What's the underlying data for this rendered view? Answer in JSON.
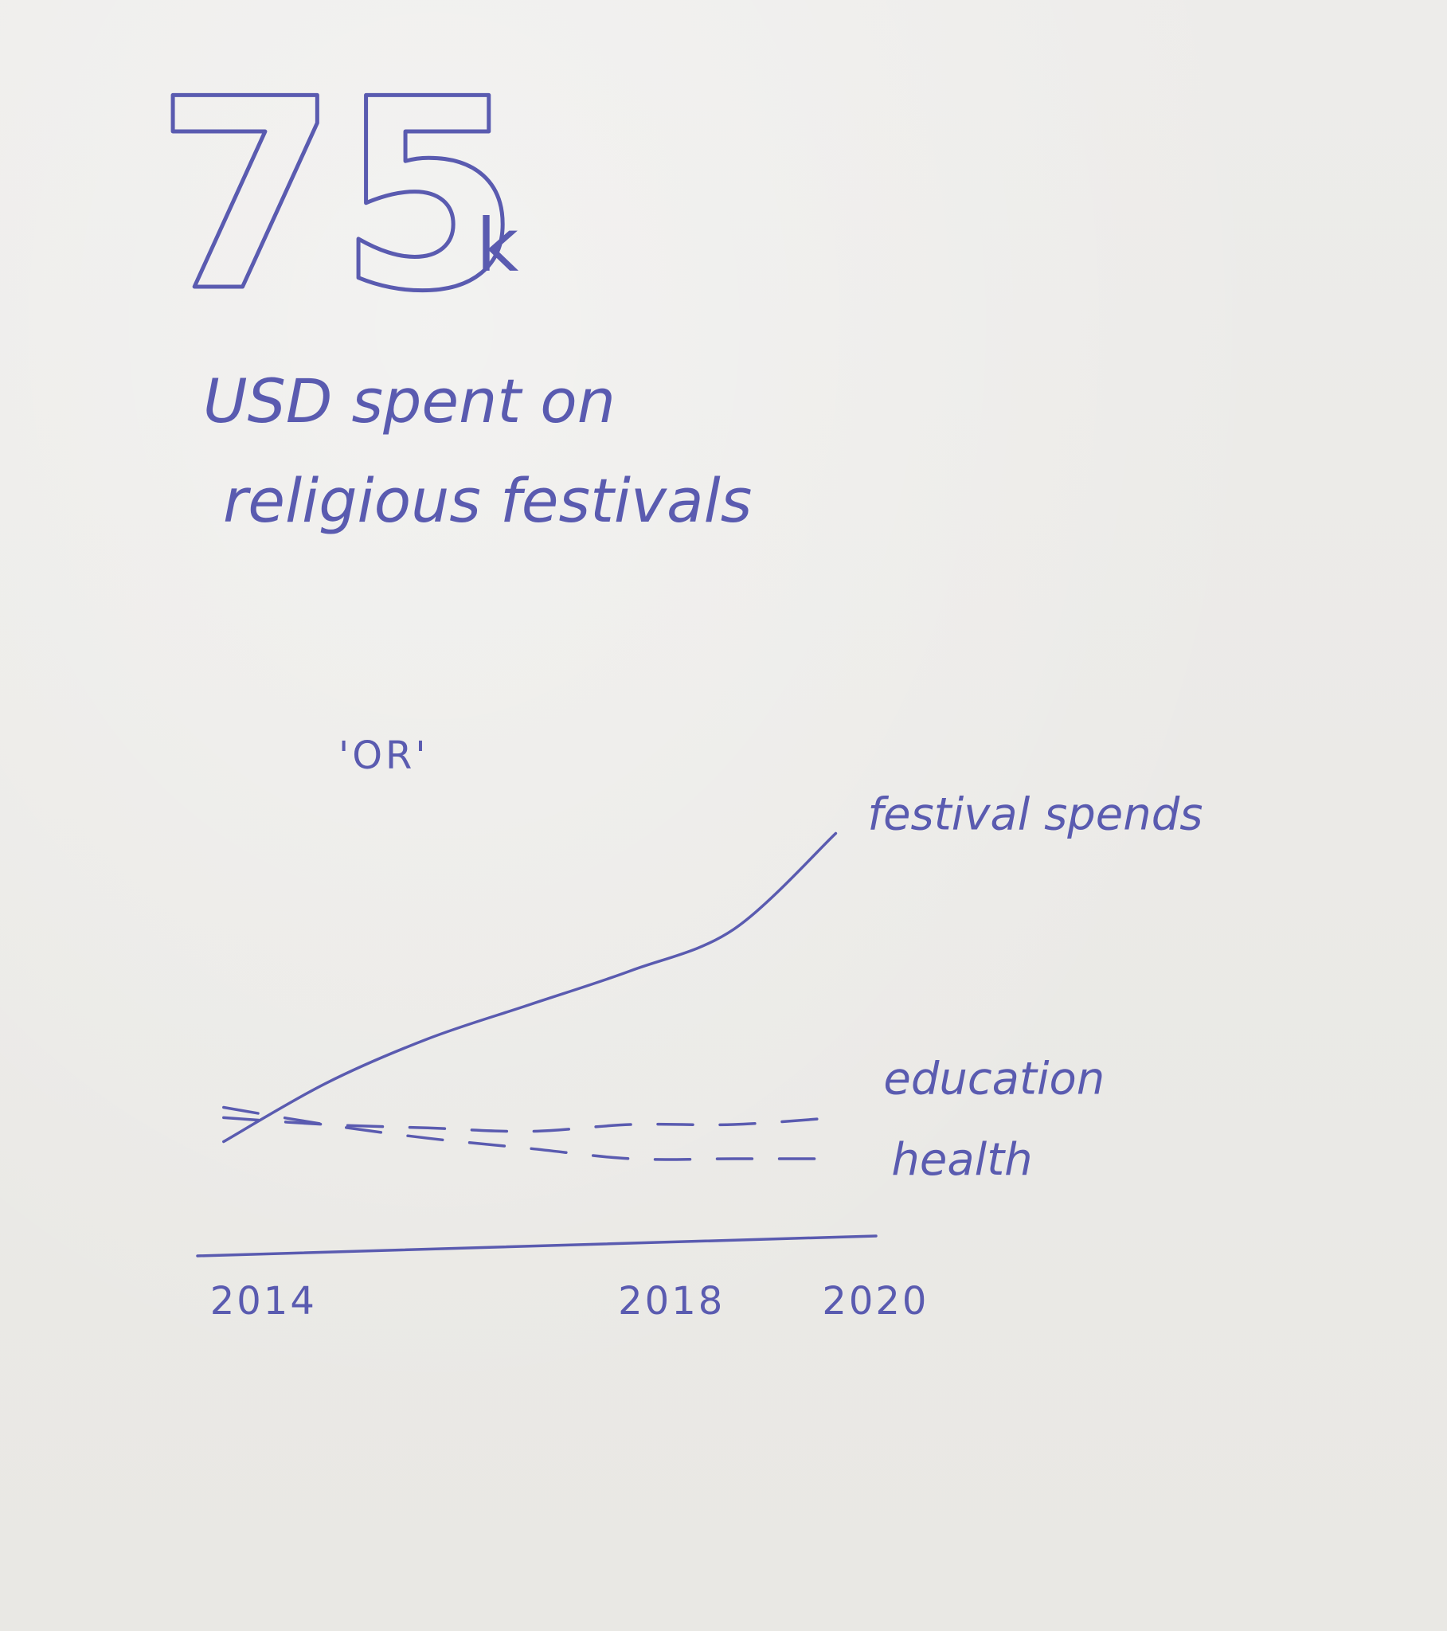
{
  "headline": {
    "value": "75",
    "unit": "k",
    "caption_line1": "USD spent on",
    "caption_line2": "religious festivals"
  },
  "separator": "'OR'",
  "ink_color": "#5a5bb0",
  "paper_color": "#ecebe7",
  "chart_data": {
    "type": "line",
    "title": "",
    "xlabel": "",
    "ylabel": "",
    "x": [
      2014,
      2015,
      2016,
      2017,
      2018,
      2019,
      2020
    ],
    "tick_labels": [
      "2014",
      "2018",
      "2020"
    ],
    "tick_values": [
      2014,
      2018,
      2020
    ],
    "xlim": [
      2013.9,
      2020.2
    ],
    "ylim": [
      0,
      100
    ],
    "grid": false,
    "legend": "inline labels at line ends",
    "series": [
      {
        "name": "festival spends",
        "style": "solid",
        "values": [
          5,
          22,
          35,
          45,
          55,
          67,
          95
        ]
      },
      {
        "name": "education",
        "style": "dashed",
        "values": [
          12,
          10,
          9,
          8,
          10,
          10,
          12
        ]
      },
      {
        "name": "health",
        "style": "dashed",
        "values": [
          15,
          10,
          6,
          3,
          0,
          0,
          0
        ]
      }
    ]
  }
}
